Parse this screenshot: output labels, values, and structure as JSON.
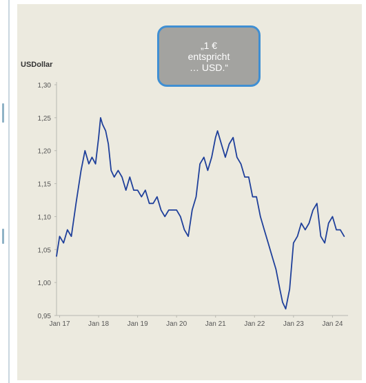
{
  "callout": {
    "line1": "„1 €",
    "line2": "entspricht",
    "line3": "… USD.“"
  },
  "colors": {
    "panel_background": "#eceadf",
    "line": "#1e3f9a",
    "callout_fill": "#a3a3a0",
    "callout_border": "#3f8fd3"
  },
  "chart_data": {
    "type": "line",
    "title": "",
    "xlabel": "",
    "ylabel": "USDollar",
    "ylim": [
      0.95,
      1.3
    ],
    "yticks": [
      "1,30",
      "1,25",
      "1,20",
      "1,15",
      "1,10",
      "1,05",
      "1,00",
      "0,95"
    ],
    "ytick_values": [
      1.3,
      1.25,
      1.2,
      1.15,
      1.1,
      1.05,
      1.0,
      0.95
    ],
    "xticks": [
      "Jan 17",
      "Jan 18",
      "Jan 19",
      "Jan 20",
      "Jan 21",
      "Jan 22",
      "Jan 23",
      "Jan 24"
    ],
    "xtick_values": [
      2017.0,
      2018.0,
      2019.0,
      2020.0,
      2021.0,
      2022.0,
      2023.0,
      2024.0
    ],
    "xlim": [
      2016.92,
      2024.4
    ],
    "grid": false,
    "series": [
      {
        "x": [
          2016.92,
          2017.0,
          2017.1,
          2017.2,
          2017.3,
          2017.42,
          2017.55,
          2017.65,
          2017.75,
          2017.83,
          2017.92,
          2018.0,
          2018.05,
          2018.1,
          2018.18,
          2018.25,
          2018.32,
          2018.4,
          2018.5,
          2018.6,
          2018.7,
          2018.8,
          2018.9,
          2019.0,
          2019.1,
          2019.2,
          2019.3,
          2019.4,
          2019.5,
          2019.6,
          2019.7,
          2019.8,
          2019.9,
          2020.0,
          2020.1,
          2020.2,
          2020.3,
          2020.4,
          2020.5,
          2020.6,
          2020.7,
          2020.8,
          2020.9,
          2021.0,
          2021.05,
          2021.15,
          2021.25,
          2021.35,
          2021.45,
          2021.55,
          2021.65,
          2021.75,
          2021.85,
          2021.95,
          2022.05,
          2022.15,
          2022.25,
          2022.35,
          2022.45,
          2022.55,
          2022.65,
          2022.72,
          2022.8,
          2022.9,
          2023.0,
          2023.1,
          2023.2,
          2023.3,
          2023.4,
          2023.5,
          2023.6,
          2023.7,
          2023.8,
          2023.9,
          2024.0,
          2024.1,
          2024.2,
          2024.3
        ],
        "y": [
          1.04,
          1.07,
          1.06,
          1.08,
          1.07,
          1.12,
          1.17,
          1.2,
          1.18,
          1.19,
          1.18,
          1.22,
          1.25,
          1.24,
          1.23,
          1.21,
          1.17,
          1.16,
          1.17,
          1.16,
          1.14,
          1.16,
          1.14,
          1.14,
          1.13,
          1.14,
          1.12,
          1.12,
          1.13,
          1.11,
          1.1,
          1.11,
          1.11,
          1.11,
          1.1,
          1.08,
          1.07,
          1.11,
          1.13,
          1.18,
          1.19,
          1.17,
          1.19,
          1.22,
          1.23,
          1.21,
          1.19,
          1.21,
          1.22,
          1.19,
          1.18,
          1.16,
          1.16,
          1.13,
          1.13,
          1.1,
          1.08,
          1.06,
          1.04,
          1.02,
          0.99,
          0.97,
          0.96,
          0.99,
          1.06,
          1.07,
          1.09,
          1.08,
          1.09,
          1.11,
          1.12,
          1.07,
          1.06,
          1.09,
          1.1,
          1.08,
          1.08,
          1.07
        ]
      }
    ]
  }
}
